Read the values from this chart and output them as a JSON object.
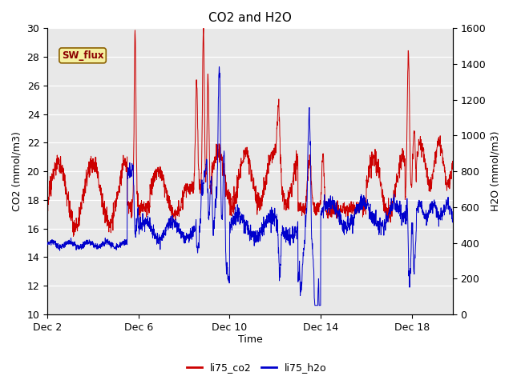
{
  "title": "CO2 and H2O",
  "xlabel": "Time",
  "ylabel_left": "CO2 (mmol/m3)",
  "ylabel_right": "H2O (mmol/m3)",
  "ylim_left": [
    10,
    30
  ],
  "ylim_right": [
    0,
    1600
  ],
  "yticks_left": [
    10,
    12,
    14,
    16,
    18,
    20,
    22,
    24,
    26,
    28,
    30
  ],
  "yticks_right": [
    0,
    200,
    400,
    600,
    800,
    1000,
    1200,
    1400,
    1600
  ],
  "xtick_labels": [
    "Dec 2",
    "Dec 6",
    "Dec 10",
    "Dec 14",
    "Dec 18"
  ],
  "xtick_positions": [
    2,
    6,
    10,
    14,
    18
  ],
  "xlim": [
    2,
    19.8
  ],
  "color_co2": "#cc0000",
  "color_h2o": "#0000cc",
  "legend_labels": [
    "li75_co2",
    "li75_h2o"
  ],
  "annotation_text": "SW_flux",
  "background_color": "#e8e8e8",
  "grid_color": "white",
  "title_fontsize": 11,
  "figwidth": 6.4,
  "figheight": 4.8,
  "dpi": 100
}
